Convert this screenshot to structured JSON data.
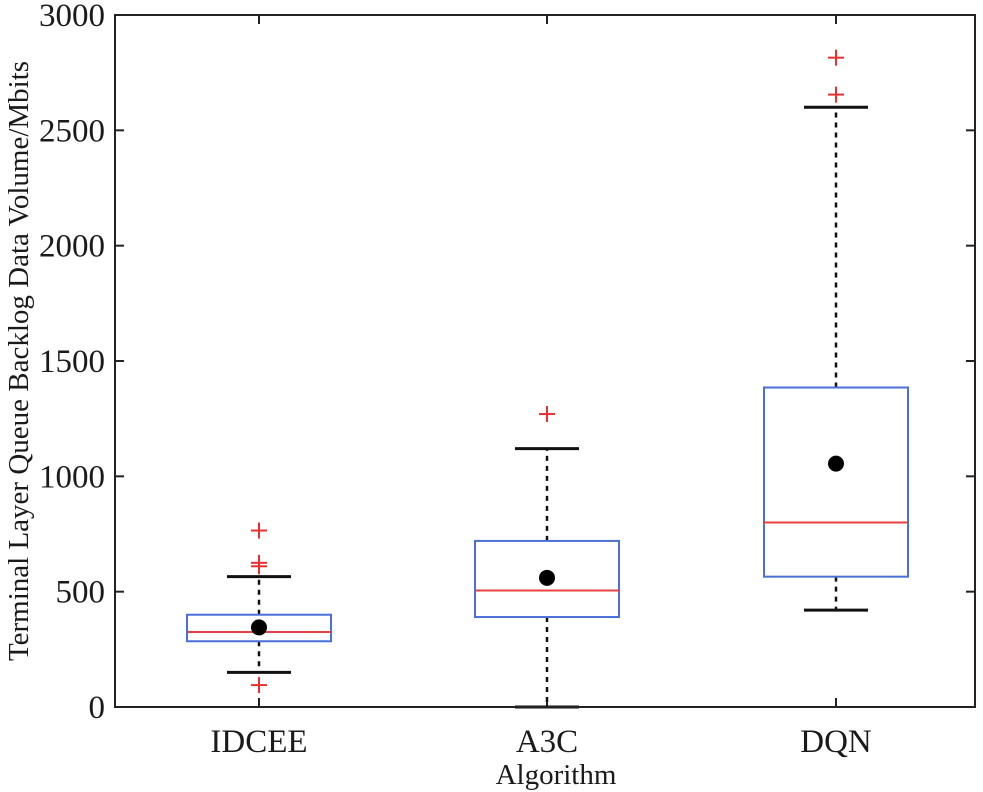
{
  "chart_data": {
    "type": "box",
    "title": "",
    "xlabel": "Algorithm",
    "ylabel": "Terminal Layer Queue Backlog Data Volume/Mbits",
    "ylim": [
      0,
      3000
    ],
    "yticks": [
      0,
      500,
      1000,
      1500,
      2000,
      2500,
      3000
    ],
    "categories": [
      "IDCEE",
      "A3C",
      "DQN"
    ],
    "grid": false,
    "legend": "none",
    "colors": {
      "box": "#4a6fd6",
      "median": "#e84040",
      "outlier": "#e83030",
      "whisker": "#111111",
      "mean": "#000000"
    },
    "boxes": [
      {
        "category": "IDCEE",
        "whisker_low": 150,
        "q1": 285,
        "median": 325,
        "q3": 400,
        "whisker_high": 565,
        "mean": 345,
        "outliers": [
          95,
          610,
          625,
          765
        ]
      },
      {
        "category": "A3C",
        "whisker_low": 0,
        "q1": 390,
        "median": 505,
        "q3": 720,
        "whisker_high": 1120,
        "mean": 560,
        "outliers": [
          1270
        ]
      },
      {
        "category": "DQN",
        "whisker_low": 420,
        "q1": 565,
        "median": 800,
        "q3": 1385,
        "whisker_high": 2600,
        "mean": 1055,
        "outliers": [
          2655,
          2815
        ]
      }
    ]
  }
}
